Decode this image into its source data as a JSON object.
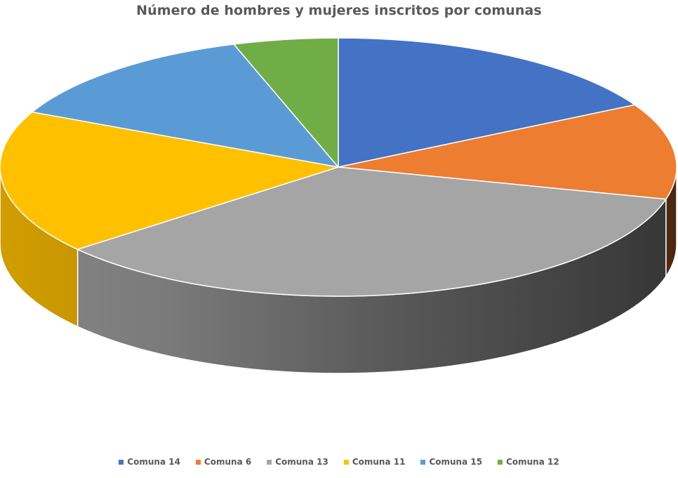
{
  "chart_data": {
    "type": "pie",
    "title": "Número de hombres y mujeres inscritos por comunas",
    "categories": [
      "Comuna 14",
      "Comuna 6",
      "Comuna 13",
      "Comuna 11",
      "Comuna 15",
      "Comuna 12"
    ],
    "values": [
      17,
      12,
      35,
      18,
      13,
      5
    ],
    "colors": [
      "#4472C4",
      "#ED7D31",
      "#A5A5A5",
      "#FFC000",
      "#5B9BD5",
      "#70AD47"
    ],
    "legend_position": "bottom",
    "style": "3d"
  }
}
